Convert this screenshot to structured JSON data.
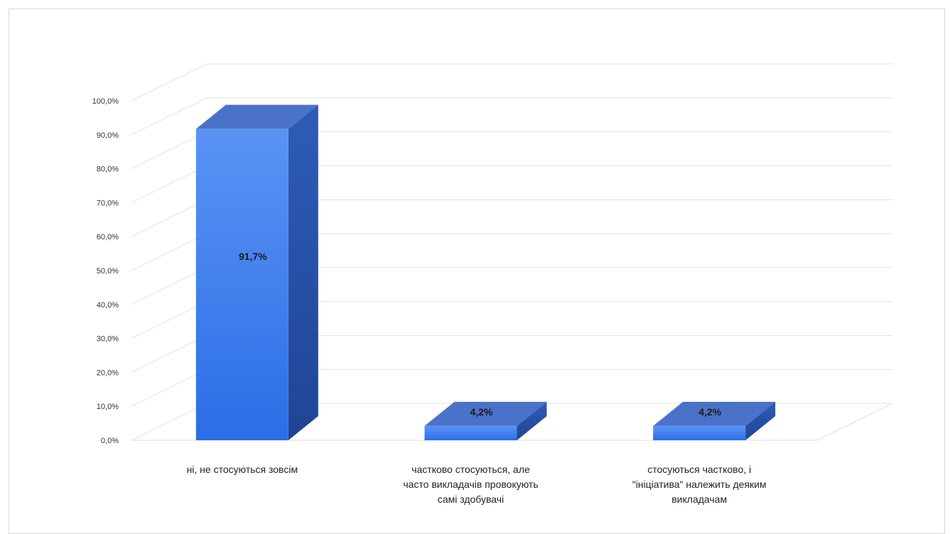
{
  "chart_data": {
    "type": "bar",
    "categories": [
      [
        "ні, не стосуються зовсім"
      ],
      [
        "частково стосуються, але",
        "часто викладачів провокують",
        "самі здобувачі"
      ],
      [
        "стосуються частково, і",
        "\"ініціатива\" належить деяким",
        "викладачам"
      ]
    ],
    "values": [
      91.7,
      4.2,
      4.2
    ],
    "value_labels": [
      "91,7%",
      "4,2%",
      "4,2%"
    ],
    "ylim": [
      0,
      100
    ],
    "yticks": [
      "0,0%",
      "10,0%",
      "20,0%",
      "30,0%",
      "40,0%",
      "50,0%",
      "60,0%",
      "70,0%",
      "80,0%",
      "90,0%",
      "100,0%"
    ],
    "grid": true,
    "legend": "none",
    "three_d": true,
    "colors": {
      "front_top": "#5b93f5",
      "front_bottom": "#2a6ee6",
      "side": "#244ea6",
      "top": "#4a72c8",
      "grid": "#e2e2e2"
    }
  }
}
